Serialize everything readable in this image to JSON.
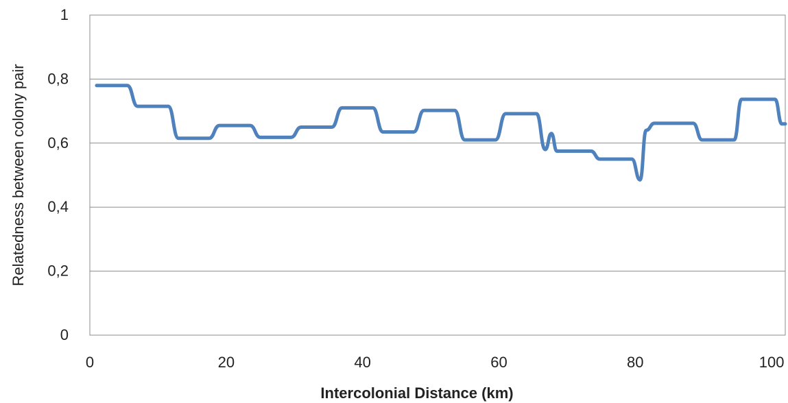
{
  "chart_data": {
    "type": "line",
    "title": "",
    "xlabel": "Intercolonial Distance  (km)",
    "ylabel": "Relatedness between colony pair",
    "xlim": [
      0,
      102
    ],
    "ylim": [
      0,
      1
    ],
    "grid": true,
    "legend": "none",
    "x_ticks": [
      "0",
      "20",
      "40",
      "60",
      "80",
      "100"
    ],
    "y_ticks": [
      "0",
      "0,2",
      "0,4",
      "0,6",
      "0,8",
      "1"
    ],
    "series": [
      {
        "color": "#4f81bd",
        "x": [
          1,
          5.5,
          7,
          11.5,
          13,
          17.5,
          19,
          23.5,
          25,
          29.5,
          31,
          35.5,
          37,
          41.5,
          43,
          47.5,
          49,
          53.5,
          55,
          59.5,
          61,
          65.5,
          66.8,
          67.7,
          68.5,
          73.5,
          74.8,
          79.5,
          80.7,
          81.6,
          82.8,
          88.5,
          89.8,
          94.5,
          95.6,
          100.5,
          101.5,
          102
        ],
        "y": [
          0.78,
          0.78,
          0.715,
          0.715,
          0.615,
          0.615,
          0.655,
          0.655,
          0.618,
          0.618,
          0.65,
          0.65,
          0.71,
          0.71,
          0.635,
          0.635,
          0.702,
          0.702,
          0.61,
          0.61,
          0.692,
          0.692,
          0.58,
          0.63,
          0.575,
          0.575,
          0.55,
          0.55,
          0.485,
          0.64,
          0.662,
          0.662,
          0.61,
          0.61,
          0.737,
          0.737,
          0.66,
          0.66
        ]
      }
    ]
  }
}
